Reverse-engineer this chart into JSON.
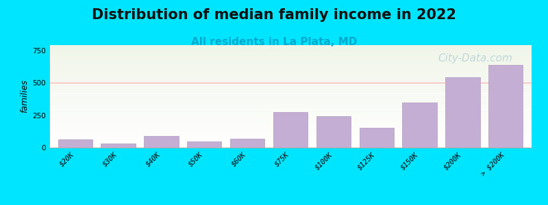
{
  "title": "Distribution of median family income in 2022",
  "subtitle": "All residents in La Plata, MD",
  "watermark": "City-Data.com",
  "xlabel": "",
  "ylabel": "families",
  "categories": [
    "$20K",
    "$30K",
    "$40K",
    "$50K",
    "$60K",
    "$75K",
    "$100K",
    "$125K",
    "$150K",
    "$200K",
    "> $200K"
  ],
  "values": [
    65,
    30,
    90,
    45,
    70,
    275,
    240,
    155,
    350,
    545,
    635
  ],
  "bar_color": "#c5aed4",
  "bar_edge_color": "#b09ac0",
  "background_color": "#00e5ff",
  "plot_bg_top": "#f0f5e8",
  "plot_bg_bottom": "#ffffff",
  "title_fontsize": 15,
  "subtitle_fontsize": 11,
  "subtitle_color": "#00aacc",
  "ylabel_fontsize": 9,
  "tick_fontsize": 7.5,
  "yticks": [
    0,
    250,
    500,
    750
  ],
  "ylim": [
    0,
    790
  ],
  "watermark_color": "#aaccd4",
  "watermark_fontsize": 11
}
